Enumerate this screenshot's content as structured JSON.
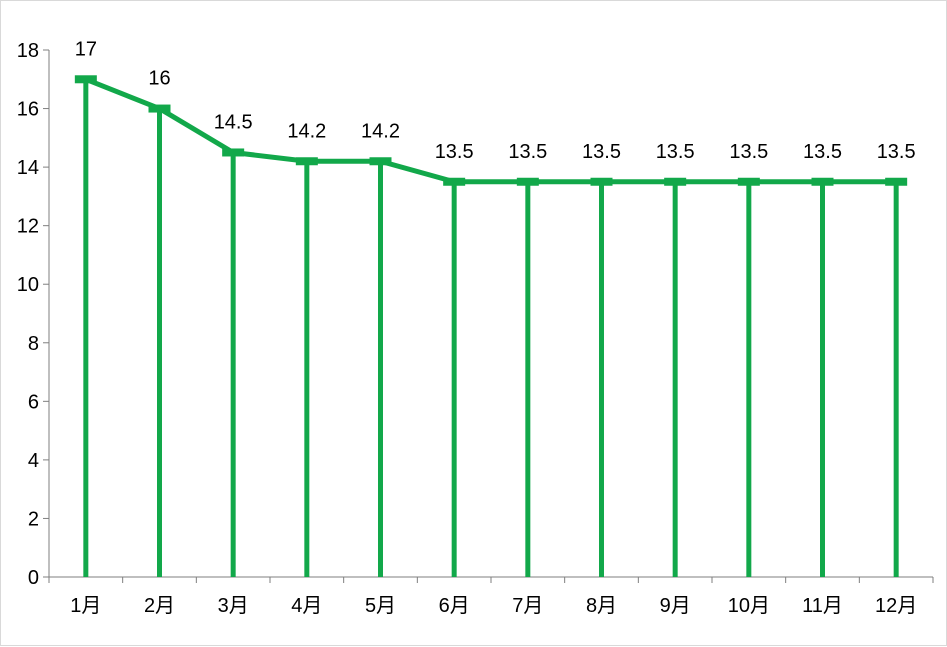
{
  "chart_data": {
    "type": "line",
    "categories": [
      "1月",
      "2月",
      "3月",
      "4月",
      "5月",
      "6月",
      "7月",
      "8月",
      "9月",
      "10月",
      "11月",
      "12月"
    ],
    "values": [
      17,
      16,
      14.5,
      14.2,
      14.2,
      13.5,
      13.5,
      13.5,
      13.5,
      13.5,
      13.5,
      13.5
    ],
    "data_labels": [
      "17",
      "16",
      "14.5",
      "14.2",
      "14.2",
      "13.5",
      "13.5",
      "13.5",
      "13.5",
      "13.5",
      "13.5",
      "13.5"
    ],
    "y_ticks": [
      "0",
      "2",
      "4",
      "6",
      "8",
      "10",
      "12",
      "14",
      "16",
      "18"
    ],
    "ylim": [
      0,
      18
    ],
    "drop_lines": true,
    "grid": false,
    "legend": "none",
    "line_color": "#12a84a"
  }
}
